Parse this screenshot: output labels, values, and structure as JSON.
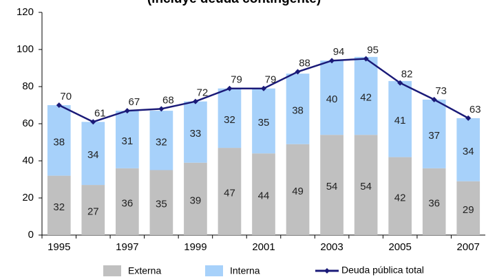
{
  "chart_data": {
    "type": "stacked-bar-line",
    "title": "(incluye deuda contingente)",
    "categories": [
      "1995",
      null,
      "1997",
      null,
      "1999",
      null,
      "2001",
      null,
      "2003",
      null,
      "2005",
      null,
      "2007"
    ],
    "series": [
      {
        "name": "Externa",
        "type": "bar",
        "color": "#c0c0c0",
        "values": [
          32,
          27,
          36,
          35,
          39,
          47,
          44,
          49,
          54,
          54,
          42,
          36,
          29
        ]
      },
      {
        "name": "Interna",
        "type": "bar",
        "color": "#a7d1fa",
        "values": [
          38,
          34,
          31,
          32,
          33,
          32,
          35,
          38,
          40,
          42,
          41,
          37,
          34
        ]
      },
      {
        "name": "Deuda pública total",
        "type": "line",
        "color": "#1a1a78",
        "values": [
          70,
          61,
          67,
          68,
          72,
          79,
          79,
          88,
          94,
          95,
          82,
          73,
          63
        ]
      }
    ],
    "ylim": [
      0,
      120
    ],
    "yticks": [
      0,
      20,
      40,
      60,
      80,
      100,
      120
    ],
    "grid": false,
    "legend": "bottom"
  }
}
